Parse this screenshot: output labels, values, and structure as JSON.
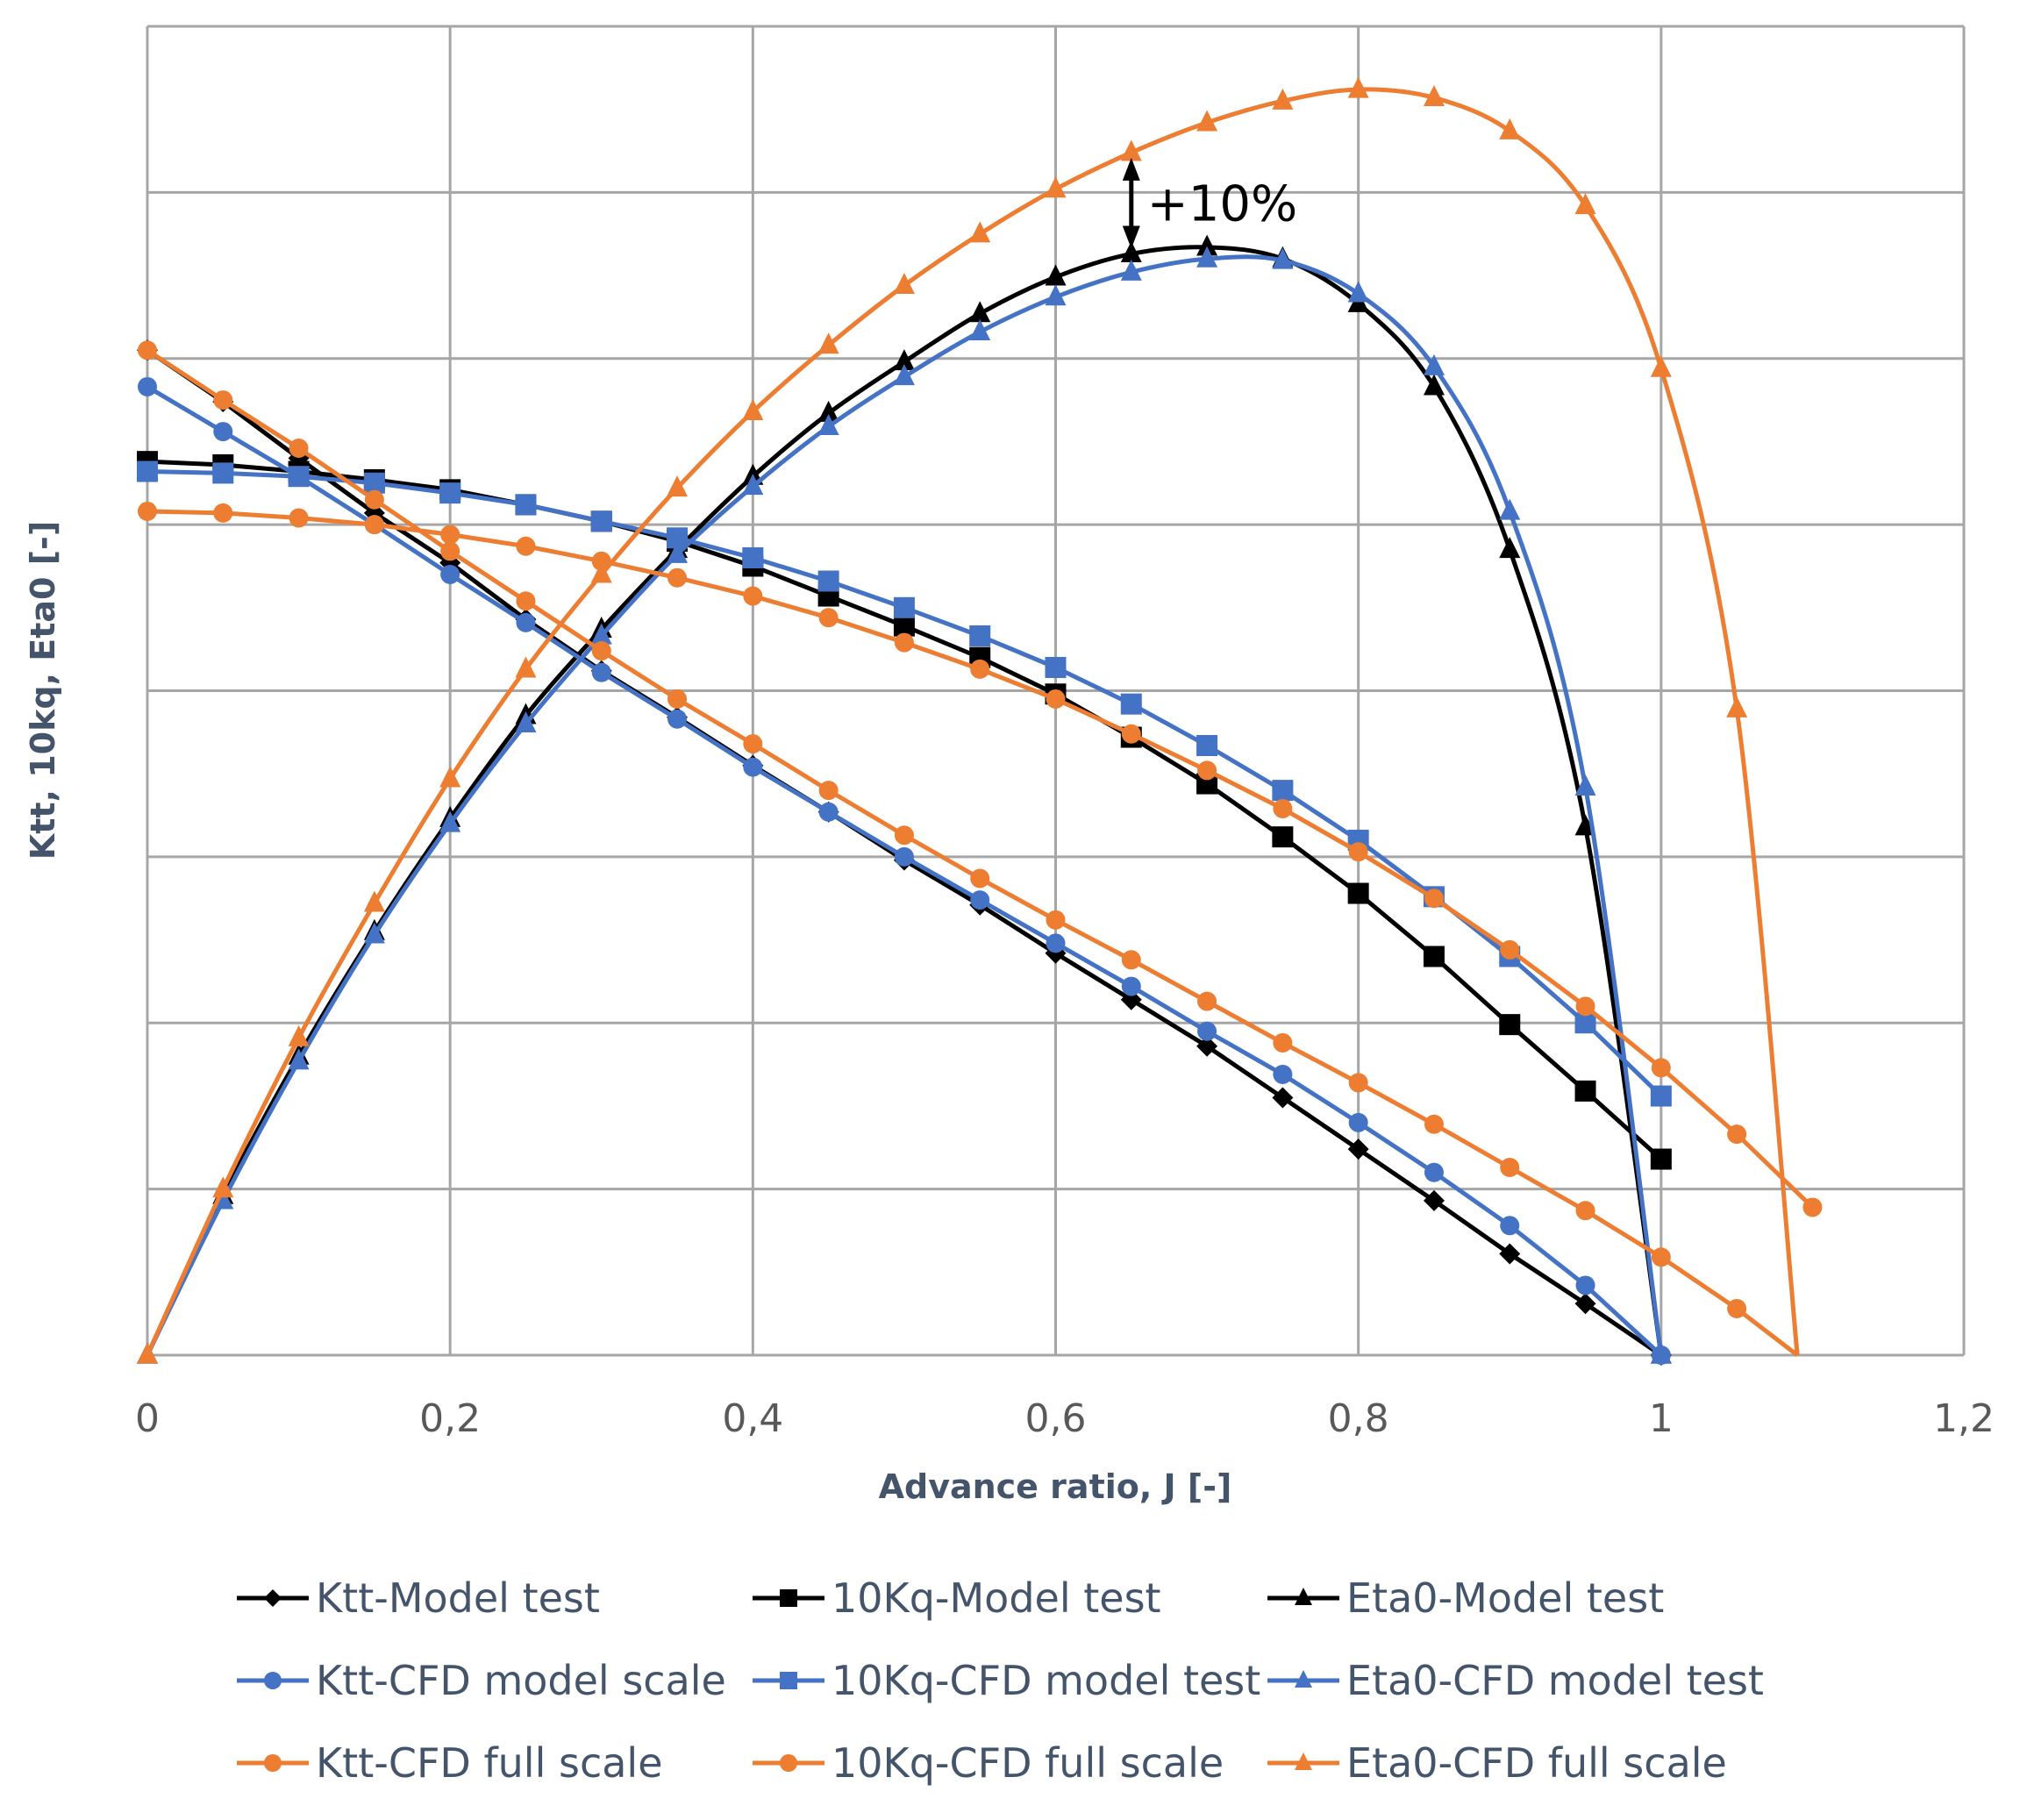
{
  "chart_data": {
    "type": "line",
    "title": "",
    "xlabel": "Advance ratio, J [-]",
    "ylabel": "Ktt, 10kq, Eta0 [-]",
    "xlim": [
      0,
      1.2
    ],
    "ylim": [
      0,
      8
    ],
    "y_units_note": "y values read in gridline units (y tick labels not shown)",
    "x_ticks": [
      "0",
      "0,2",
      "0,4",
      "0,6",
      "0,8",
      "1",
      "1,2"
    ],
    "x_tick_values": [
      0,
      0.2,
      0.4,
      0.6,
      0.8,
      1.0,
      1.2
    ],
    "y_gridlines": [
      0,
      1,
      2,
      3,
      4,
      5,
      6,
      7,
      8
    ],
    "grid": true,
    "legend_position": "bottom",
    "colors": {
      "model_test": "#000000",
      "cfd_model": "#4472c4",
      "cfd_full": "#ed7d31",
      "grid": "#a6a6a6"
    },
    "annotation": {
      "text": "+10%",
      "x": 0.65,
      "y_from": 6.63,
      "y_to": 7.24
    },
    "series": [
      {
        "name": "Ktt-Model test",
        "color": "#000000",
        "marker": "diamond",
        "smooth": false,
        "x": [
          0,
          0.05,
          0.1,
          0.15,
          0.2,
          0.25,
          0.3,
          0.35,
          0.4,
          0.45,
          0.5,
          0.55,
          0.6,
          0.65,
          0.7,
          0.75,
          0.8,
          0.85,
          0.9,
          0.95,
          1.0
        ],
        "y": [
          6.05,
          5.74,
          5.4,
          5.07,
          4.77,
          4.43,
          4.12,
          3.84,
          3.55,
          3.27,
          2.98,
          2.71,
          2.42,
          2.14,
          1.86,
          1.55,
          1.24,
          0.93,
          0.61,
          0.31,
          0.0
        ]
      },
      {
        "name": "10Kq-Model test",
        "color": "#000000",
        "marker": "square",
        "smooth": false,
        "x": [
          0,
          0.05,
          0.1,
          0.15,
          0.2,
          0.25,
          0.3,
          0.35,
          0.4,
          0.45,
          0.5,
          0.55,
          0.6,
          0.65,
          0.7,
          0.75,
          0.8,
          0.85,
          0.9,
          0.95,
          1.0
        ],
        "y": [
          5.38,
          5.36,
          5.32,
          5.27,
          5.21,
          5.12,
          5.02,
          4.9,
          4.75,
          4.57,
          4.39,
          4.2,
          3.98,
          3.72,
          3.44,
          3.12,
          2.78,
          2.4,
          1.99,
          1.59,
          1.18
        ]
      },
      {
        "name": "Eta0-Model test",
        "color": "#000000",
        "marker": "triangle",
        "smooth": true,
        "x": [
          0,
          0.05,
          0.1,
          0.15,
          0.2,
          0.25,
          0.3,
          0.35,
          0.4,
          0.45,
          0.5,
          0.55,
          0.6,
          0.65,
          0.7,
          0.75,
          0.8,
          0.85,
          0.9,
          0.95,
          1.0
        ],
        "y": [
          0,
          0.96,
          1.8,
          2.55,
          3.23,
          3.85,
          4.37,
          4.85,
          5.29,
          5.67,
          5.98,
          6.27,
          6.49,
          6.63,
          6.67,
          6.6,
          6.33,
          5.83,
          4.85,
          3.18,
          0
        ]
      },
      {
        "name": "Ktt-CFD model scale",
        "color": "#4472c4",
        "marker": "circle",
        "smooth": false,
        "x": [
          0,
          0.05,
          0.1,
          0.15,
          0.2,
          0.25,
          0.3,
          0.35,
          0.4,
          0.45,
          0.5,
          0.55,
          0.6,
          0.65,
          0.7,
          0.75,
          0.8,
          0.85,
          0.9,
          0.95,
          1.0
        ],
        "y": [
          5.83,
          5.56,
          5.29,
          5.0,
          4.7,
          4.41,
          4.11,
          3.83,
          3.54,
          3.27,
          3.0,
          2.74,
          2.48,
          2.22,
          1.95,
          1.69,
          1.4,
          1.1,
          0.78,
          0.42,
          0.0
        ]
      },
      {
        "name": "10Kq-CFD model test",
        "color": "#4472c4",
        "marker": "square",
        "smooth": false,
        "x": [
          0,
          0.05,
          0.1,
          0.15,
          0.2,
          0.25,
          0.3,
          0.35,
          0.4,
          0.45,
          0.5,
          0.55,
          0.6,
          0.65,
          0.7,
          0.75,
          0.8,
          0.85,
          0.9,
          0.95,
          1.0
        ],
        "y": [
          5.32,
          5.31,
          5.29,
          5.25,
          5.19,
          5.12,
          5.02,
          4.92,
          4.8,
          4.66,
          4.5,
          4.33,
          4.14,
          3.92,
          3.67,
          3.4,
          3.1,
          2.76,
          2.4,
          2.0,
          1.56
        ]
      },
      {
        "name": "Eta0-CFD model test",
        "color": "#4472c4",
        "marker": "triangle",
        "smooth": true,
        "x": [
          0,
          0.05,
          0.1,
          0.15,
          0.2,
          0.25,
          0.3,
          0.35,
          0.4,
          0.45,
          0.5,
          0.55,
          0.6,
          0.65,
          0.7,
          0.75,
          0.8,
          0.85,
          0.9,
          0.95,
          1.0
        ],
        "y": [
          0,
          0.93,
          1.77,
          2.53,
          3.2,
          3.8,
          4.33,
          4.82,
          5.23,
          5.59,
          5.89,
          6.16,
          6.37,
          6.52,
          6.6,
          6.59,
          6.39,
          5.95,
          5.08,
          3.42,
          0
        ]
      },
      {
        "name": "Ktt-CFD full scale",
        "color": "#ed7d31",
        "marker": "circle",
        "smooth": false,
        "x": [
          0,
          0.05,
          0.1,
          0.15,
          0.2,
          0.25,
          0.3,
          0.35,
          0.4,
          0.45,
          0.5,
          0.55,
          0.6,
          0.65,
          0.7,
          0.75,
          0.8,
          0.85,
          0.9,
          0.95,
          1.0,
          1.05,
          1.09
        ],
        "y": [
          6.05,
          5.75,
          5.46,
          5.15,
          4.84,
          4.54,
          4.24,
          3.95,
          3.68,
          3.4,
          3.13,
          2.87,
          2.62,
          2.38,
          2.13,
          1.88,
          1.64,
          1.39,
          1.13,
          0.87,
          0.59,
          0.28,
          0.0
        ],
        "marker_skip_last": true
      },
      {
        "name": "10Kq-CFD full scale",
        "color": "#ed7d31",
        "marker": "circle",
        "smooth": false,
        "x": [
          0,
          0.05,
          0.1,
          0.15,
          0.2,
          0.25,
          0.3,
          0.35,
          0.4,
          0.45,
          0.5,
          0.55,
          0.6,
          0.65,
          0.7,
          0.75,
          0.8,
          0.85,
          0.9,
          0.95,
          1.0,
          1.05,
          1.1
        ],
        "y": [
          5.08,
          5.07,
          5.04,
          5.0,
          4.94,
          4.87,
          4.78,
          4.68,
          4.57,
          4.44,
          4.29,
          4.13,
          3.95,
          3.74,
          3.52,
          3.29,
          3.03,
          2.75,
          2.44,
          2.1,
          1.73,
          1.33,
          0.89
        ]
      },
      {
        "name": "Eta0-CFD full scale",
        "color": "#ed7d31",
        "marker": "triangle",
        "smooth": true,
        "x": [
          0,
          0.05,
          0.1,
          0.15,
          0.2,
          0.25,
          0.3,
          0.35,
          0.4,
          0.45,
          0.5,
          0.55,
          0.6,
          0.65,
          0.7,
          0.75,
          0.8,
          0.85,
          0.9,
          0.95,
          1.0,
          1.05,
          1.09
        ],
        "y": [
          0,
          1.0,
          1.91,
          2.72,
          3.47,
          4.13,
          4.7,
          5.22,
          5.68,
          6.08,
          6.44,
          6.75,
          7.02,
          7.24,
          7.42,
          7.55,
          7.62,
          7.57,
          7.37,
          6.92,
          5.94,
          3.89,
          0
        ],
        "marker_skip_last": true
      }
    ]
  },
  "legend": {
    "items": [
      {
        "label": "Ktt-Model test",
        "series_index": 0
      },
      {
        "label": "10Kq-Model test",
        "series_index": 1
      },
      {
        "label": "Eta0-Model test",
        "series_index": 2
      },
      {
        "label": "Ktt-CFD model scale",
        "series_index": 3
      },
      {
        "label": "10Kq-CFD model test",
        "series_index": 4
      },
      {
        "label": "Eta0-CFD model test",
        "series_index": 5
      },
      {
        "label": "Ktt-CFD full scale",
        "series_index": 6
      },
      {
        "label": "10Kq-CFD full scale",
        "series_index": 7
      },
      {
        "label": "Eta0-CFD full scale",
        "series_index": 8
      }
    ]
  }
}
